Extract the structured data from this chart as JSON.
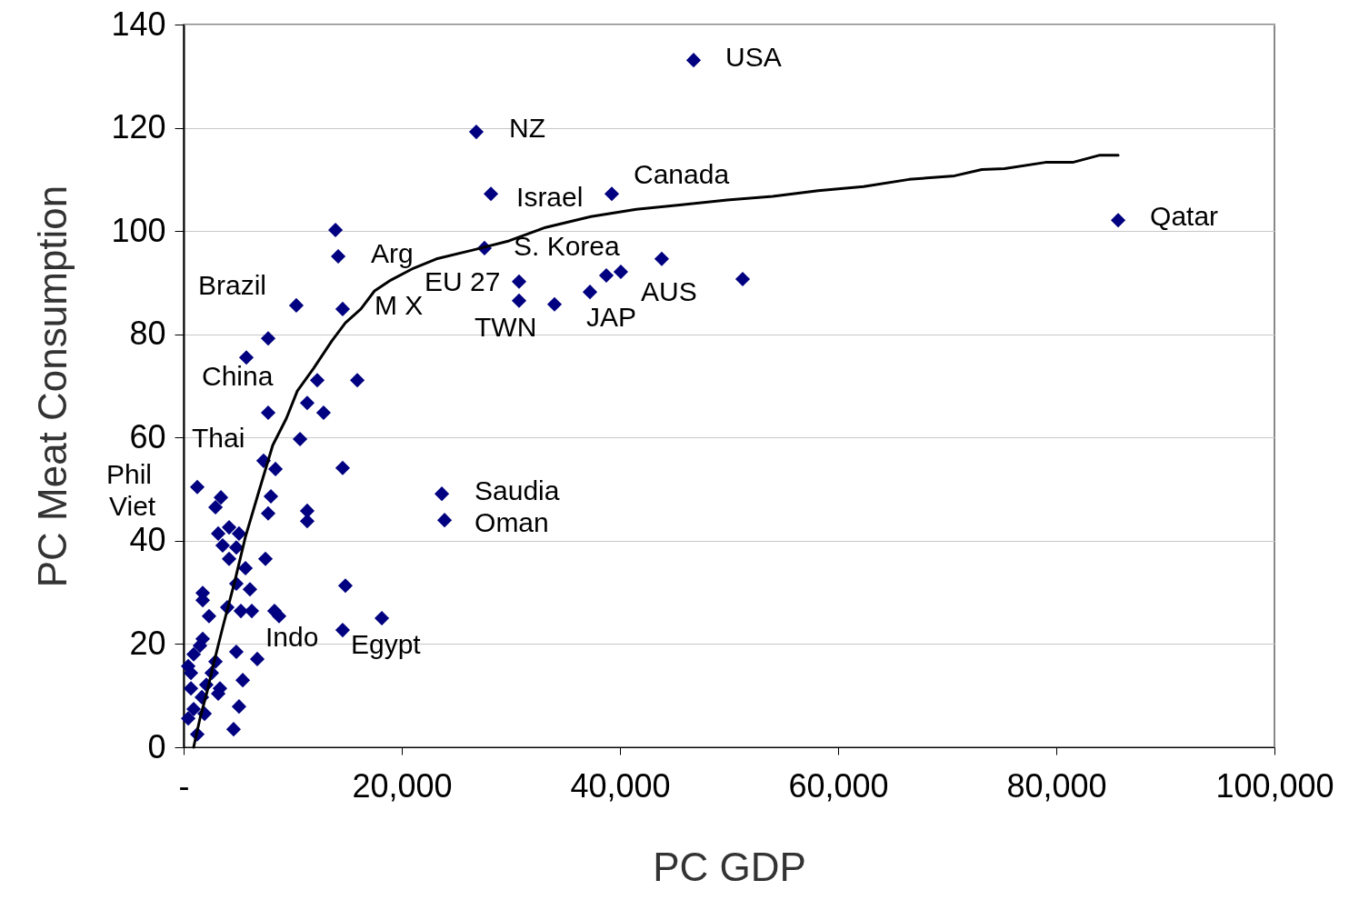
{
  "chart_data": {
    "type": "scatter",
    "xlabel": "PC GDP",
    "ylabel": "PC Meat Consumption",
    "xlim": [
      0,
      100000
    ],
    "ylim": [
      0,
      140
    ],
    "xticks": [
      {
        "value": 0,
        "label": "-"
      },
      {
        "value": 20000,
        "label": "20,000"
      },
      {
        "value": 40000,
        "label": "40,000"
      },
      {
        "value": 60000,
        "label": "60,000"
      },
      {
        "value": 80000,
        "label": "80,000"
      },
      {
        "value": 100000,
        "label": "100,000"
      }
    ],
    "yticks": [
      0,
      20,
      40,
      60,
      80,
      100,
      120,
      140
    ],
    "grid": "y",
    "series": [
      {
        "color": "#000080",
        "marker": "diamond",
        "x": [
          23670,
          23920,
          46750,
          26830,
          28170,
          39250,
          85670,
          27580,
          43830,
          40080,
          38750,
          51250,
          30750,
          30750,
          34000,
          37250,
          13920,
          14170,
          14580,
          10330,
          7750,
          5750,
          12250,
          15920,
          11330,
          12830,
          7750,
          10670,
          7330,
          8420,
          14580,
          1250,
          3420,
          2920,
          8000,
          7750,
          11330,
          11330,
          4170,
          3170,
          5080,
          3580,
          4830,
          4170,
          7500,
          5670,
          4830,
          6080,
          14830,
          1750,
          1750,
          5250,
          6250,
          8330,
          8750,
          18170,
          14580,
          4000,
          2330,
          1750,
          920,
          4830,
          6750,
          420,
          2920,
          5420,
          670,
          3330,
          2080,
          1670,
          5080,
          920,
          1920,
          420,
          4580,
          1250,
          670,
          1500,
          2580,
          3170
        ],
        "values": [
          49.1,
          44.0,
          133.1,
          119.2,
          107.2,
          107.2,
          102.1,
          96.7,
          94.6,
          92.1,
          91.4,
          90.7,
          90.2,
          86.5,
          85.8,
          88.2,
          100.2,
          95.1,
          84.9,
          85.6,
          79.2,
          75.5,
          71.1,
          71.1,
          66.7,
          64.8,
          64.8,
          59.7,
          55.5,
          53.9,
          54.1,
          50.4,
          48.4,
          46.5,
          48.6,
          45.3,
          45.8,
          43.8,
          42.6,
          41.4,
          41.4,
          39.1,
          38.7,
          36.5,
          36.5,
          34.7,
          31.7,
          30.6,
          31.3,
          29.9,
          28.5,
          26.4,
          26.4,
          26.4,
          25.4,
          25.0,
          22.7,
          27.1,
          25.4,
          21.0,
          18.0,
          18.5,
          17.1,
          15.7,
          16.6,
          13.0,
          11.4,
          11.4,
          12.1,
          9.7,
          7.9,
          7.4,
          6.5,
          5.6,
          3.5,
          2.5,
          14.4,
          19.7,
          14.4,
          10.4
        ]
      },
      {
        "type": "line",
        "color": "#000000",
        "line_style": "solid",
        "marker": "none",
        "x": [
          917,
          1500,
          2170,
          2750,
          3580,
          4670,
          5670,
          6920,
          8170,
          9420,
          10420,
          11920,
          13580,
          14830,
          16250,
          17500,
          19000,
          21080,
          23170,
          26500,
          29830,
          33170,
          37330,
          41500,
          45670,
          49830,
          54000,
          58170,
          62330,
          66500,
          70670,
          73170,
          75250,
          79000,
          81500,
          84000,
          85670
        ],
        "values": [
          0,
          5.6,
          10.9,
          16.2,
          23.2,
          32.0,
          40.8,
          49.7,
          58.5,
          63.7,
          69.0,
          73.4,
          78.7,
          82.2,
          84.9,
          88.4,
          90.5,
          92.8,
          94.6,
          96.3,
          98.1,
          100.7,
          102.8,
          104.2,
          105.1,
          106.0,
          106.7,
          107.8,
          108.6,
          110.0,
          110.7,
          111.9,
          112.1,
          113.3,
          113.3,
          114.7,
          114.7
        ]
      }
    ],
    "annotations": [
      {
        "text": "USA",
        "x": 46750,
        "y": 133.1
      },
      {
        "text": "NZ",
        "x": 26830,
        "y": 119.2
      },
      {
        "text": "Canada",
        "x": 39250,
        "y": 107.2
      },
      {
        "text": "Israel",
        "x": 28170,
        "y": 107.2
      },
      {
        "text": "Qatar",
        "x": 85670,
        "y": 102.1
      },
      {
        "text": "S. Korea",
        "x": 27580,
        "y": 96.7
      },
      {
        "text": "Arg",
        "x": 14170,
        "y": 95.1
      },
      {
        "text": "Brazil",
        "x": 10330,
        "y": 85.6
      },
      {
        "text": "EU 27",
        "x": 30750,
        "y": 90.2
      },
      {
        "text": "M X",
        "x": 14580,
        "y": 84.9
      },
      {
        "text": "AUS",
        "x": 40080,
        "y": 92.1
      },
      {
        "text": "JAP",
        "x": 37250,
        "y": 88.2
      },
      {
        "text": "TWN",
        "x": 30750,
        "y": 86.5
      },
      {
        "text": "China",
        "x": 5750,
        "y": 75.5
      },
      {
        "text": "Thai",
        "x": 7330,
        "y": 55.5
      },
      {
        "text": "Phil",
        "x": 1250,
        "y": 50.4
      },
      {
        "text": "Viet",
        "x": 2920,
        "y": 46.5
      },
      {
        "text": "Saudia",
        "x": 23670,
        "y": 49.1
      },
      {
        "text": "Oman",
        "x": 23920,
        "y": 44.0
      },
      {
        "text": "Indo",
        "x": 8330,
        "y": 26.4
      },
      {
        "text": "Egypt",
        "x": 14580,
        "y": 22.7
      }
    ]
  }
}
